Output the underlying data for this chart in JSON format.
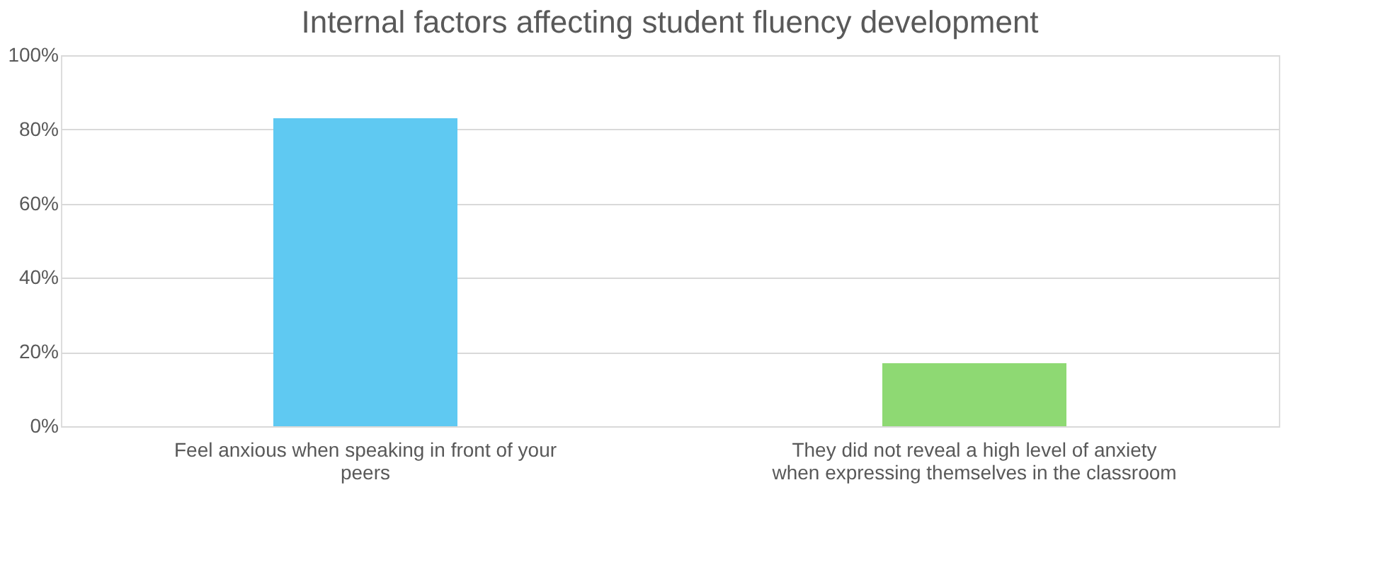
{
  "chart_data": {
    "type": "bar",
    "title": "Internal factors affecting student fluency development",
    "categories": [
      "Feel anxious when speaking in front of your peers",
      "They did not reveal a high level of anxiety when expressing themselves in the classroom"
    ],
    "values": [
      83,
      17
    ],
    "colors": [
      "#5fc9f2",
      "#8ed973"
    ],
    "ylim": [
      0,
      100
    ],
    "yticks": [
      {
        "value": 0,
        "label": "0%"
      },
      {
        "value": 20,
        "label": "20%"
      },
      {
        "value": 40,
        "label": "40%"
      },
      {
        "value": 60,
        "label": "60%"
      },
      {
        "value": 80,
        "label": "80%"
      },
      {
        "value": 100,
        "label": "100%"
      }
    ],
    "grid": "y",
    "legend": false
  }
}
